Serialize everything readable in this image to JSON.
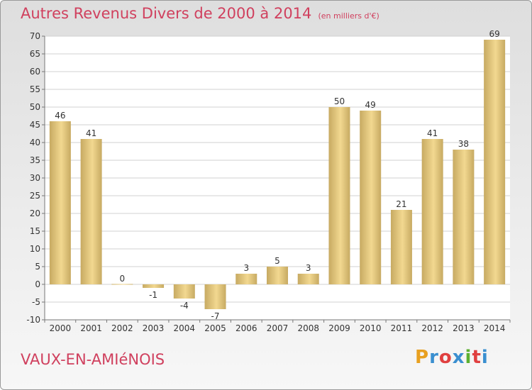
{
  "header": {
    "title": "Autres Revenus Divers de 2000 à 2014",
    "unit": "(en milliers d'€)"
  },
  "footer": {
    "commune": "VAUX-EN-AMIéNOIS",
    "brand": "Proxiti",
    "brand_colors": [
      "#e8a020",
      "#3a8fd0",
      "#e04040",
      "#3a8fd0",
      "#5cb030",
      "#e04040",
      "#3a8fd0"
    ]
  },
  "colors": {
    "title": "#d0405e",
    "bar_light": "#f2d890",
    "bar_dark": "#c7aa62",
    "plot_background": "#ffffff",
    "grid": "#d2d2d2"
  },
  "chart_data": {
    "type": "bar",
    "title": "Autres Revenus Divers de 2000 à 2014",
    "categories": [
      "2000",
      "2001",
      "2002",
      "2003",
      "2004",
      "2005",
      "2006",
      "2007",
      "2008",
      "2009",
      "2010",
      "2011",
      "2012",
      "2013",
      "2014"
    ],
    "values": [
      46,
      41,
      0,
      -1,
      -4,
      -7,
      3,
      5,
      3,
      50,
      49,
      21,
      41,
      38,
      69
    ],
    "ylim": [
      -10,
      70
    ],
    "yticks": [
      -10,
      -5,
      0,
      5,
      10,
      15,
      20,
      25,
      30,
      35,
      40,
      45,
      50,
      55,
      60,
      65,
      70
    ],
    "grid": true,
    "legend": "none"
  }
}
